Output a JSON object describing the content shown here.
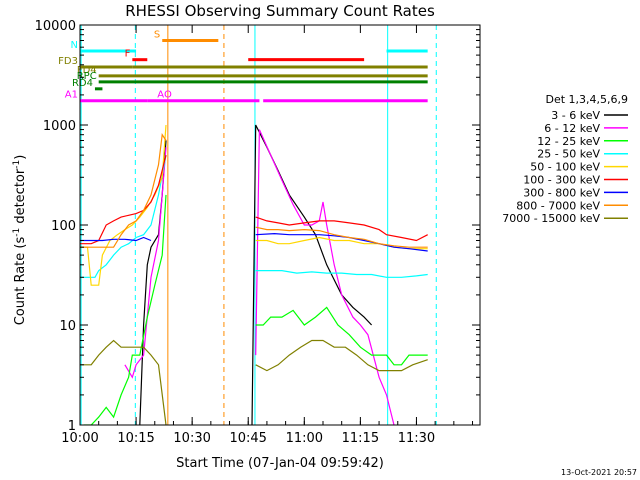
{
  "chart_data": {
    "type": "line",
    "title": "RHESSI Observing Summary Count Rates",
    "xlabel": "Start Time (07-Jan-04 09:59:42)",
    "ylabel": "Count Rate (s⁻¹ detector⁻¹)",
    "ylabel_parts": {
      "main": "Count Rate (s",
      "sup1": "-1",
      "mid": " detector",
      "sup2": "-1",
      "end": ")"
    },
    "x_range_min": [
      0,
      107
    ],
    "ylim": [
      1,
      10000
    ],
    "yscale": "log",
    "x_ticks": [
      {
        "min": 0,
        "label": "10:00"
      },
      {
        "min": 15,
        "label": "10:15"
      },
      {
        "min": 30,
        "label": "10:30"
      },
      {
        "min": 45,
        "label": "10:45"
      },
      {
        "min": 60,
        "label": "11:00"
      },
      {
        "min": 75,
        "label": "11:15"
      },
      {
        "min": 90,
        "label": "11:30"
      }
    ],
    "y_ticks": [
      {
        "v": 1,
        "label": "1"
      },
      {
        "v": 10,
        "label": "10"
      },
      {
        "v": 100,
        "label": "100"
      },
      {
        "v": 1000,
        "label": "1000"
      },
      {
        "v": 10000,
        "label": "10000"
      }
    ],
    "legend_title": "Det 1,3,4,5,6,9",
    "series": [
      {
        "name": "3 - 6 keV",
        "color": "#000000",
        "points": [
          [
            16,
            1
          ],
          [
            17,
            10
          ],
          [
            18,
            40
          ],
          [
            19,
            60
          ],
          [
            21,
            80
          ],
          [
            22,
            200
          ],
          [
            23,
            700
          ],
          [
            34,
            null
          ],
          [
            46,
            1
          ],
          [
            47,
            1000
          ],
          [
            50,
            600
          ],
          [
            53,
            350
          ],
          [
            56,
            200
          ],
          [
            60,
            120
          ],
          [
            63,
            80
          ],
          [
            66,
            40
          ],
          [
            70,
            20
          ],
          [
            73,
            15
          ],
          [
            76,
            12
          ],
          [
            78,
            10
          ]
        ]
      },
      {
        "name": "6 - 12 keV",
        "color": "#ff00ff",
        "points": [
          [
            12,
            4
          ],
          [
            14,
            3
          ],
          [
            15,
            4
          ],
          [
            17,
            5
          ],
          [
            19,
            30
          ],
          [
            21,
            70
          ],
          [
            22,
            200
          ],
          [
            23,
            600
          ],
          [
            34,
            null
          ],
          [
            47,
            5
          ],
          [
            48,
            900
          ],
          [
            51,
            500
          ],
          [
            54,
            280
          ],
          [
            57,
            160
          ],
          [
            60,
            100
          ],
          [
            62,
            100
          ],
          [
            64,
            110
          ],
          [
            65,
            170
          ],
          [
            66,
            100
          ],
          [
            68,
            40
          ],
          [
            70,
            20
          ],
          [
            73,
            12
          ],
          [
            75,
            10
          ],
          [
            77,
            8
          ],
          [
            80,
            3
          ],
          [
            82,
            2
          ],
          [
            84,
            1
          ]
        ]
      },
      {
        "name": "12 - 25 keV",
        "color": "#00ff00",
        "points": [
          [
            1,
            1
          ],
          [
            3,
            1
          ],
          [
            5,
            1.2
          ],
          [
            7,
            1.5
          ],
          [
            9,
            1.2
          ],
          [
            11,
            2
          ],
          [
            13,
            3
          ],
          [
            14,
            5
          ],
          [
            16,
            5
          ],
          [
            18,
            12
          ],
          [
            20,
            25
          ],
          [
            22,
            50
          ],
          [
            23,
            200
          ],
          [
            34,
            null
          ],
          [
            47,
            10
          ],
          [
            49,
            10
          ],
          [
            51,
            12
          ],
          [
            54,
            12
          ],
          [
            57,
            14
          ],
          [
            60,
            10
          ],
          [
            63,
            12
          ],
          [
            66,
            15
          ],
          [
            69,
            10
          ],
          [
            72,
            8
          ],
          [
            75,
            6
          ],
          [
            78,
            5
          ],
          [
            80,
            5
          ],
          [
            82,
            5
          ],
          [
            84,
            4
          ],
          [
            86,
            4
          ],
          [
            88,
            5
          ],
          [
            90,
            5
          ],
          [
            93,
            5
          ]
        ]
      },
      {
        "name": "25 - 50 keV",
        "color": "#00ffff",
        "points": [
          [
            0,
            30
          ],
          [
            2,
            30
          ],
          [
            4,
            30
          ],
          [
            5,
            35
          ],
          [
            7,
            40
          ],
          [
            9,
            50
          ],
          [
            11,
            60
          ],
          [
            13,
            65
          ],
          [
            15,
            75
          ],
          [
            17,
            80
          ],
          [
            19,
            100
          ],
          [
            21,
            200
          ],
          [
            23,
            500
          ],
          [
            34,
            null
          ],
          [
            47,
            35
          ],
          [
            50,
            35
          ],
          [
            54,
            35
          ],
          [
            58,
            33
          ],
          [
            62,
            34
          ],
          [
            66,
            33
          ],
          [
            70,
            33
          ],
          [
            74,
            32
          ],
          [
            78,
            32
          ],
          [
            82,
            30
          ],
          [
            86,
            30
          ],
          [
            90,
            31
          ],
          [
            93,
            32
          ]
        ]
      },
      {
        "name": "50 - 100 keV",
        "color": "#ffd700",
        "points": [
          [
            0,
            60
          ],
          [
            2,
            60
          ],
          [
            3,
            25
          ],
          [
            5,
            25
          ],
          [
            6,
            50
          ],
          [
            8,
            70
          ],
          [
            10,
            80
          ],
          [
            12,
            90
          ],
          [
            14,
            100
          ],
          [
            16,
            120
          ],
          [
            18,
            150
          ],
          [
            20,
            200
          ],
          [
            22,
            300
          ],
          [
            23,
            1000
          ],
          [
            34,
            null
          ],
          [
            47,
            70
          ],
          [
            50,
            70
          ],
          [
            53,
            65
          ],
          [
            56,
            65
          ],
          [
            60,
            70
          ],
          [
            64,
            75
          ],
          [
            68,
            70
          ],
          [
            72,
            70
          ],
          [
            76,
            65
          ],
          [
            80,
            65
          ],
          [
            84,
            60
          ],
          [
            88,
            58
          ],
          [
            93,
            58
          ]
        ]
      },
      {
        "name": "100 - 300 keV",
        "color": "#ff0000",
        "points": [
          [
            0,
            65
          ],
          [
            3,
            65
          ],
          [
            5,
            70
          ],
          [
            7,
            100
          ],
          [
            9,
            110
          ],
          [
            11,
            120
          ],
          [
            13,
            125
          ],
          [
            15,
            130
          ],
          [
            17,
            140
          ],
          [
            19,
            170
          ],
          [
            21,
            250
          ],
          [
            23,
            500
          ],
          [
            34,
            null
          ],
          [
            47,
            120
          ],
          [
            50,
            110
          ],
          [
            53,
            105
          ],
          [
            56,
            100
          ],
          [
            60,
            105
          ],
          [
            64,
            110
          ],
          [
            68,
            110
          ],
          [
            72,
            105
          ],
          [
            76,
            100
          ],
          [
            80,
            90
          ],
          [
            82,
            80
          ],
          [
            86,
            75
          ],
          [
            90,
            70
          ],
          [
            93,
            80
          ]
        ]
      },
      {
        "name": "300 - 800 keV",
        "color": "#0000ff",
        "points": [
          [
            0,
            70
          ],
          [
            3,
            70
          ],
          [
            6,
            70
          ],
          [
            9,
            72
          ],
          [
            12,
            72
          ],
          [
            15,
            70
          ],
          [
            17,
            75
          ],
          [
            19,
            70
          ],
          [
            34,
            null
          ],
          [
            47,
            80
          ],
          [
            52,
            82
          ],
          [
            56,
            80
          ],
          [
            60,
            80
          ],
          [
            64,
            80
          ],
          [
            68,
            78
          ],
          [
            72,
            75
          ],
          [
            76,
            70
          ],
          [
            80,
            65
          ],
          [
            84,
            60
          ],
          [
            88,
            58
          ],
          [
            93,
            55
          ]
        ]
      },
      {
        "name": "800 - 7000 keV",
        "color": "#ff8c00",
        "points": [
          [
            0,
            60
          ],
          [
            3,
            60
          ],
          [
            6,
            60
          ],
          [
            9,
            60
          ],
          [
            11,
            80
          ],
          [
            13,
            100
          ],
          [
            15,
            110
          ],
          [
            17,
            140
          ],
          [
            19,
            200
          ],
          [
            21,
            400
          ],
          [
            22,
            800
          ],
          [
            23,
            700
          ],
          [
            34,
            null
          ],
          [
            47,
            95
          ],
          [
            50,
            90
          ],
          [
            53,
            90
          ],
          [
            56,
            88
          ],
          [
            60,
            90
          ],
          [
            64,
            88
          ],
          [
            68,
            80
          ],
          [
            72,
            75
          ],
          [
            76,
            72
          ],
          [
            80,
            65
          ],
          [
            84,
            62
          ],
          [
            88,
            60
          ],
          [
            93,
            60
          ]
        ]
      },
      {
        "name": "7000 - 15000 keV",
        "color": "#808000",
        "points": [
          [
            0,
            4
          ],
          [
            3,
            4
          ],
          [
            5,
            5
          ],
          [
            7,
            6
          ],
          [
            9,
            7
          ],
          [
            11,
            6
          ],
          [
            13,
            6
          ],
          [
            15,
            6
          ],
          [
            17,
            6
          ],
          [
            19,
            5
          ],
          [
            21,
            4
          ],
          [
            23,
            1
          ],
          [
            34,
            null
          ],
          [
            47,
            4
          ],
          [
            50,
            3.5
          ],
          [
            53,
            4
          ],
          [
            56,
            5
          ],
          [
            59,
            6
          ],
          [
            62,
            7
          ],
          [
            65,
            7
          ],
          [
            68,
            6
          ],
          [
            71,
            6
          ],
          [
            74,
            5
          ],
          [
            77,
            4
          ],
          [
            80,
            3.5
          ],
          [
            83,
            3.5
          ],
          [
            86,
            3.5
          ],
          [
            89,
            4
          ],
          [
            93,
            4.5
          ]
        ]
      }
    ],
    "flags": [
      {
        "label": "S",
        "color": "#ff8c00",
        "y": 7000,
        "segments": [
          [
            22,
            37
          ]
        ]
      },
      {
        "label": "N",
        "color": "#00ffff",
        "y": 5500,
        "segments": [
          [
            0,
            15
          ],
          [
            82,
            93
          ]
        ]
      },
      {
        "label": "F",
        "color": "#ff0000",
        "y": 4500,
        "segments": [
          [
            14,
            18
          ],
          [
            45,
            76
          ]
        ]
      },
      {
        "label": "FD3",
        "color": "#808000",
        "y": 3800,
        "segments": [
          [
            0,
            14
          ],
          [
            14,
            93
          ]
        ]
      },
      {
        "label": "FD4",
        "color": "#808000",
        "y": 3100,
        "segments": [
          [
            5,
            93
          ]
        ]
      },
      {
        "label": "RPC",
        "color": "#008000",
        "y": 2700,
        "segments": [
          [
            5,
            93
          ]
        ]
      },
      {
        "label": "RD4",
        "color": "#008000",
        "y": 2300,
        "segments": [
          [
            4,
            6
          ]
        ]
      },
      {
        "label": "AO",
        "color": "#ff00ff",
        "y": 1750,
        "segments": [
          [
            18,
            48
          ],
          [
            49,
            93
          ]
        ]
      },
      {
        "label": "A1",
        "color": "#ff00ff",
        "y": 1750,
        "segments": [
          [
            0,
            18
          ]
        ]
      }
    ],
    "vlines": [
      {
        "min": 0.3,
        "color": "#00ffff",
        "dash": false
      },
      {
        "min": 14.8,
        "color": "#00ffff",
        "dash": true
      },
      {
        "min": 23.5,
        "color": "#ff8c00",
        "dash": false
      },
      {
        "min": 38.5,
        "color": "#ff8c00",
        "dash": true
      },
      {
        "min": 46.8,
        "color": "#00ffff",
        "dash": false
      },
      {
        "min": 82.3,
        "color": "#00ffff",
        "dash": false
      },
      {
        "min": 95.3,
        "color": "#00ffff",
        "dash": true
      }
    ]
  },
  "footer": {
    "timestamp": "13-Oct-2021 20:57"
  }
}
